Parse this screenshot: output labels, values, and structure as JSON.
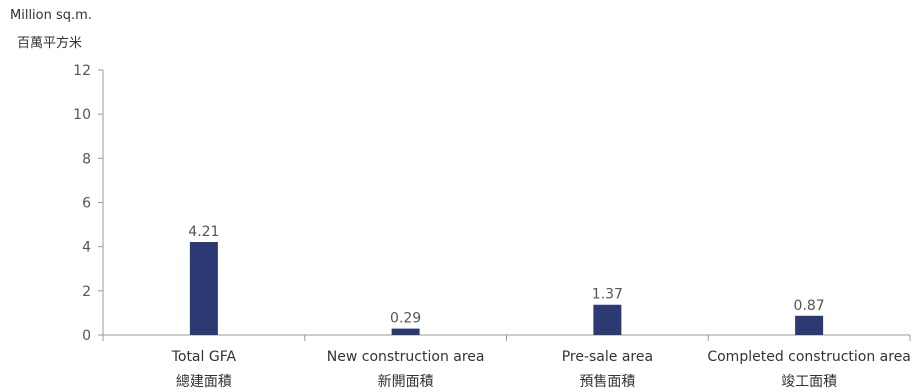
{
  "chart_data": {
    "type": "bar",
    "unit_label": [
      "Million sq.m.",
      "百萬平方米"
    ],
    "categories": [
      [
        "Total GFA",
        "總建面積"
      ],
      [
        "New construction area",
        "新開面積"
      ],
      [
        "Pre-sale area",
        "預售面積"
      ],
      [
        "Completed construction area",
        "竣工面積"
      ]
    ],
    "values": [
      4.21,
      0.29,
      1.37,
      0.87
    ],
    "data_labels": [
      "4.21",
      "0.29",
      "1.37",
      "0.87"
    ],
    "ylim": [
      0,
      12
    ],
    "yticks": [
      0,
      2,
      4,
      6,
      8,
      10,
      12
    ],
    "bar_color": "#2B3A72",
    "axis_color": "#999999",
    "grid": false,
    "legend": "none"
  }
}
